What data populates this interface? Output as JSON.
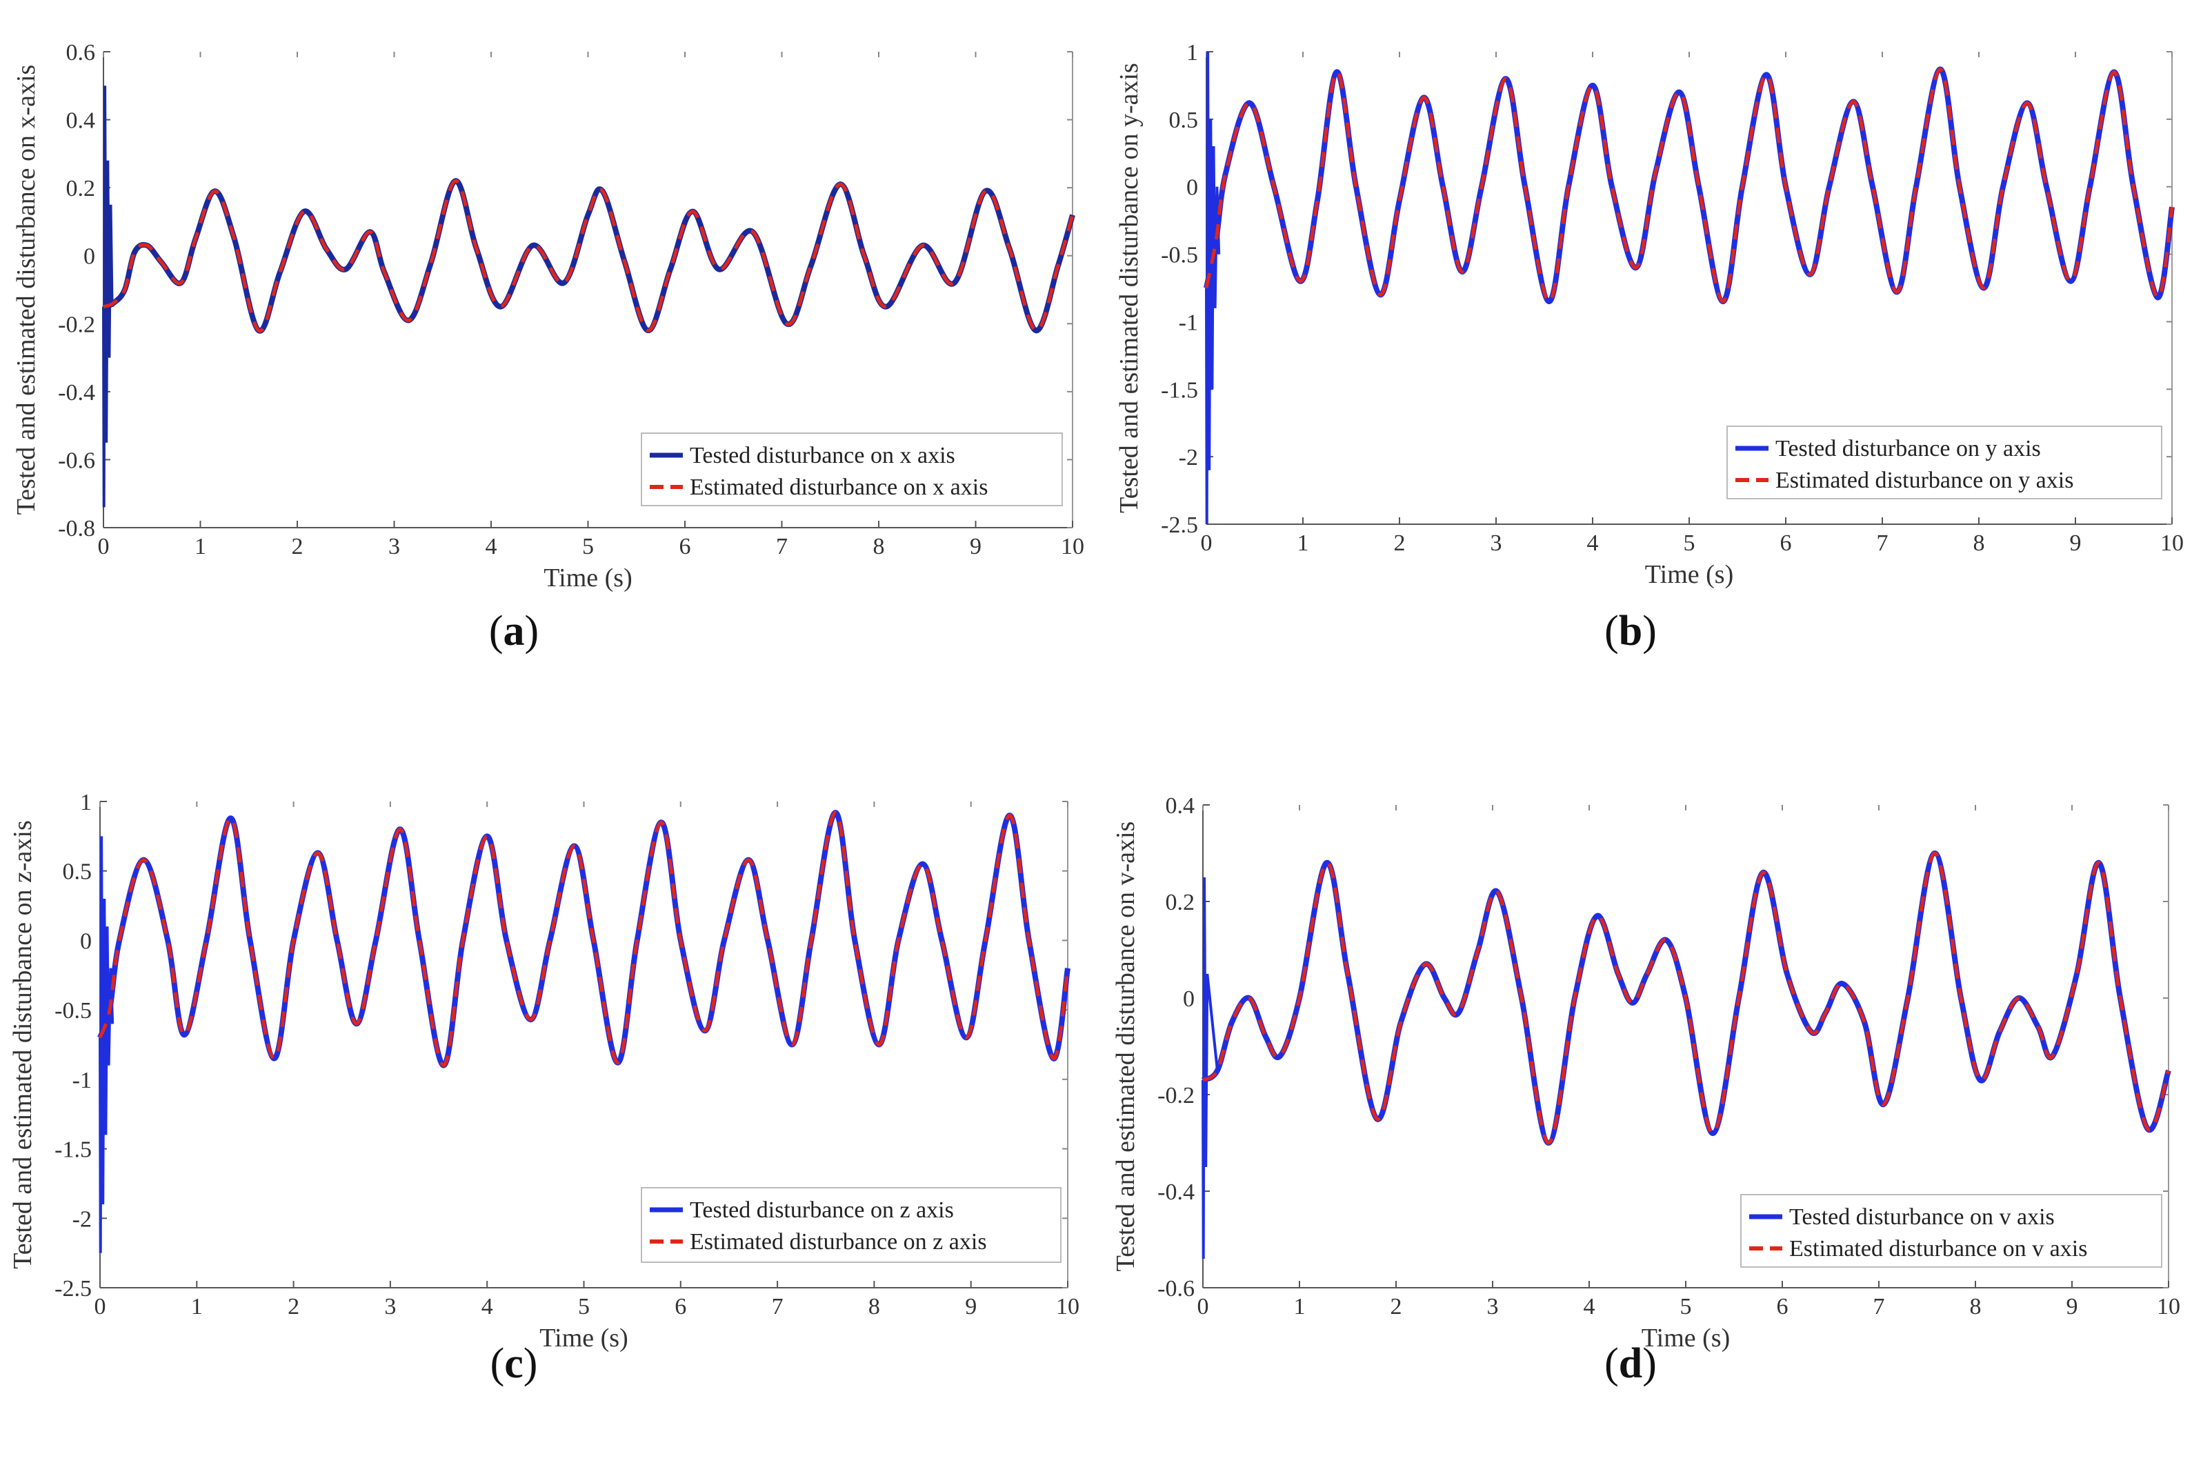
{
  "chart_data": [
    {
      "type": "line",
      "panel": "a",
      "caption": "a",
      "xlabel": "Time (s)",
      "ylabel": "Tested and estimated disturbance on x-axis",
      "xlim": [
        0,
        10
      ],
      "ylim": [
        -0.8,
        0.6
      ],
      "xticks": [
        "0",
        "1",
        "2",
        "3",
        "4",
        "5",
        "6",
        "7",
        "8",
        "9",
        "10"
      ],
      "yticks": [
        "0.6",
        "0.4",
        "0.2",
        "0",
        "-0.2",
        "-0.4",
        "-0.6",
        "-0.8"
      ],
      "legend_position": "bottom-right",
      "series": [
        {
          "name": "Tested disturbance on x axis",
          "color": "#1a2a9c",
          "style": "solid"
        },
        {
          "name": "Estimated disturbance on x axis",
          "color": "#e0261b",
          "style": "dashed"
        }
      ],
      "points": [
        [
          0,
          -0.15
        ],
        [
          0.1,
          -0.14
        ],
        [
          0.22,
          -0.1
        ],
        [
          0.32,
          0.01
        ],
        [
          0.45,
          0.03
        ],
        [
          0.6,
          -0.02
        ],
        [
          0.8,
          -0.08
        ],
        [
          0.95,
          0.05
        ],
        [
          1.15,
          0.19
        ],
        [
          1.35,
          0.05
        ],
        [
          1.6,
          -0.22
        ],
        [
          1.82,
          -0.05
        ],
        [
          2.07,
          0.13
        ],
        [
          2.3,
          0.02
        ],
        [
          2.5,
          -0.04
        ],
        [
          2.75,
          0.07
        ],
        [
          2.9,
          -0.05
        ],
        [
          3.15,
          -0.19
        ],
        [
          3.38,
          -0.02
        ],
        [
          3.63,
          0.22
        ],
        [
          3.85,
          0.02
        ],
        [
          4.1,
          -0.15
        ],
        [
          4.43,
          0.03
        ],
        [
          4.75,
          -0.08
        ],
        [
          5.0,
          0.12
        ],
        [
          5.15,
          0.19
        ],
        [
          5.38,
          -0.02
        ],
        [
          5.62,
          -0.22
        ],
        [
          5.85,
          -0.04
        ],
        [
          6.08,
          0.13
        ],
        [
          6.35,
          -0.04
        ],
        [
          6.7,
          0.07
        ],
        [
          7.05,
          -0.2
        ],
        [
          7.3,
          -0.03
        ],
        [
          7.6,
          0.21
        ],
        [
          7.85,
          0.0
        ],
        [
          8.08,
          -0.15
        ],
        [
          8.45,
          0.03
        ],
        [
          8.78,
          -0.08
        ],
        [
          9.1,
          0.19
        ],
        [
          9.35,
          0.02
        ],
        [
          9.62,
          -0.22
        ],
        [
          9.85,
          -0.03
        ],
        [
          10.0,
          0.12
        ]
      ],
      "transient": [
        [
          0.005,
          -0.74
        ],
        [
          0.015,
          0.5
        ],
        [
          0.03,
          -0.55
        ],
        [
          0.045,
          0.28
        ],
        [
          0.06,
          -0.3
        ],
        [
          0.075,
          0.15
        ],
        [
          0.09,
          -0.15
        ]
      ]
    },
    {
      "type": "line",
      "panel": "b",
      "caption": "b",
      "xlabel": "Time (s)",
      "ylabel": "Tested and estimated disturbance on y-axis",
      "xlim": [
        0,
        10
      ],
      "ylim": [
        -2.5,
        1
      ],
      "xticks": [
        "0",
        "1",
        "2",
        "3",
        "4",
        "5",
        "6",
        "7",
        "8",
        "9",
        "10"
      ],
      "yticks": [
        "1",
        "0.5",
        "0",
        "-0.5",
        "-1",
        "-1.5",
        "-2",
        "-2.5"
      ],
      "legend_position": "bottom-right",
      "series": [
        {
          "name": "Tested disturbance on y axis",
          "color": "#1f2fe0",
          "style": "solid"
        },
        {
          "name": "Estimated disturbance on y axis",
          "color": "#e0261b",
          "style": "dashed"
        }
      ],
      "points": [
        [
          0,
          -0.75
        ],
        [
          0.1,
          -0.4
        ],
        [
          0.2,
          0.1
        ],
        [
          0.45,
          0.62
        ],
        [
          0.7,
          0.0
        ],
        [
          0.97,
          -0.7
        ],
        [
          1.15,
          -0.1
        ],
        [
          1.35,
          0.85
        ],
        [
          1.55,
          0.0
        ],
        [
          1.8,
          -0.8
        ],
        [
          2.0,
          -0.1
        ],
        [
          2.25,
          0.66
        ],
        [
          2.45,
          0.0
        ],
        [
          2.65,
          -0.63
        ],
        [
          2.85,
          0.0
        ],
        [
          3.1,
          0.8
        ],
        [
          3.3,
          0.0
        ],
        [
          3.55,
          -0.85
        ],
        [
          3.75,
          0.0
        ],
        [
          4.0,
          0.75
        ],
        [
          4.2,
          0.0
        ],
        [
          4.45,
          -0.6
        ],
        [
          4.65,
          0.1
        ],
        [
          4.9,
          0.7
        ],
        [
          5.1,
          0.0
        ],
        [
          5.35,
          -0.85
        ],
        [
          5.55,
          0.0
        ],
        [
          5.8,
          0.83
        ],
        [
          6.0,
          0.0
        ],
        [
          6.25,
          -0.65
        ],
        [
          6.45,
          0.0
        ],
        [
          6.7,
          0.63
        ],
        [
          6.9,
          0.0
        ],
        [
          7.15,
          -0.78
        ],
        [
          7.35,
          0.0
        ],
        [
          7.6,
          0.87
        ],
        [
          7.8,
          0.0
        ],
        [
          8.05,
          -0.75
        ],
        [
          8.25,
          0.0
        ],
        [
          8.5,
          0.62
        ],
        [
          8.7,
          0.0
        ],
        [
          8.95,
          -0.7
        ],
        [
          9.15,
          0.0
        ],
        [
          9.4,
          0.85
        ],
        [
          9.6,
          0.0
        ],
        [
          9.85,
          -0.82
        ],
        [
          10.0,
          -0.15
        ]
      ],
      "transient": [
        [
          0.005,
          -2.5
        ],
        [
          0.015,
          1.0
        ],
        [
          0.03,
          -2.1
        ],
        [
          0.045,
          0.5
        ],
        [
          0.06,
          -1.5
        ],
        [
          0.075,
          0.3
        ],
        [
          0.09,
          -0.9
        ],
        [
          0.11,
          0.0
        ],
        [
          0.13,
          -0.5
        ]
      ]
    },
    {
      "type": "line",
      "panel": "c",
      "caption": "c",
      "xlabel": "Time (s)",
      "ylabel": "Tested and estimated disturbance on z-axis",
      "xlim": [
        0,
        10
      ],
      "ylim": [
        -2.5,
        1
      ],
      "xticks": [
        "0",
        "1",
        "2",
        "3",
        "4",
        "5",
        "6",
        "7",
        "8",
        "9",
        "10"
      ],
      "yticks": [
        "1",
        "0.5",
        "0",
        "-0.5",
        "-1",
        "-1.5",
        "-2",
        "-2.5"
      ],
      "legend_position": "bottom-right",
      "series": [
        {
          "name": "Tested disturbance on z axis",
          "color": "#1f2fe0",
          "style": "solid"
        },
        {
          "name": "Estimated disturbance on z axis",
          "color": "#e0261b",
          "style": "dashed"
        }
      ],
      "points": [
        [
          0,
          -0.7
        ],
        [
          0.1,
          -0.5
        ],
        [
          0.2,
          0.0
        ],
        [
          0.45,
          0.58
        ],
        [
          0.7,
          0.0
        ],
        [
          0.87,
          -0.68
        ],
        [
          1.1,
          0.0
        ],
        [
          1.35,
          0.88
        ],
        [
          1.55,
          0.0
        ],
        [
          1.8,
          -0.85
        ],
        [
          2.0,
          0.0
        ],
        [
          2.25,
          0.63
        ],
        [
          2.45,
          0.0
        ],
        [
          2.65,
          -0.6
        ],
        [
          2.85,
          0.0
        ],
        [
          3.1,
          0.8
        ],
        [
          3.3,
          0.0
        ],
        [
          3.55,
          -0.9
        ],
        [
          3.75,
          0.0
        ],
        [
          4.0,
          0.75
        ],
        [
          4.2,
          0.0
        ],
        [
          4.45,
          -0.57
        ],
        [
          4.65,
          0.0
        ],
        [
          4.9,
          0.68
        ],
        [
          5.1,
          0.0
        ],
        [
          5.35,
          -0.88
        ],
        [
          5.55,
          0.0
        ],
        [
          5.8,
          0.85
        ],
        [
          6.0,
          0.0
        ],
        [
          6.25,
          -0.65
        ],
        [
          6.45,
          0.0
        ],
        [
          6.7,
          0.58
        ],
        [
          6.9,
          0.0
        ],
        [
          7.15,
          -0.75
        ],
        [
          7.35,
          0.0
        ],
        [
          7.6,
          0.92
        ],
        [
          7.8,
          0.0
        ],
        [
          8.05,
          -0.75
        ],
        [
          8.25,
          0.0
        ],
        [
          8.5,
          0.55
        ],
        [
          8.7,
          0.0
        ],
        [
          8.95,
          -0.7
        ],
        [
          9.15,
          0.0
        ],
        [
          9.4,
          0.9
        ],
        [
          9.6,
          0.0
        ],
        [
          9.85,
          -0.85
        ],
        [
          10.0,
          -0.2
        ]
      ],
      "transient": [
        [
          0.005,
          -2.25
        ],
        [
          0.015,
          0.75
        ],
        [
          0.03,
          -1.9
        ],
        [
          0.045,
          0.3
        ],
        [
          0.06,
          -1.4
        ],
        [
          0.075,
          0.1
        ],
        [
          0.09,
          -0.9
        ],
        [
          0.11,
          -0.2
        ],
        [
          0.13,
          -0.6
        ]
      ]
    },
    {
      "type": "line",
      "panel": "d",
      "caption": "d",
      "xlabel": "Time (s)",
      "ylabel": "Tested and estimated disturbance on v-axis",
      "xlim": [
        0,
        10
      ],
      "ylim": [
        -0.6,
        0.4
      ],
      "xticks": [
        "0",
        "1",
        "2",
        "3",
        "4",
        "5",
        "6",
        "7",
        "8",
        "9",
        "10"
      ],
      "yticks": [
        "0.4",
        "0.2",
        "0",
        "-0.2",
        "-0.4",
        "-0.6"
      ],
      "legend_position": "bottom-right",
      "series": [
        {
          "name": "Tested disturbance on v axis",
          "color": "#1f2fe0",
          "style": "solid"
        },
        {
          "name": "Estimated disturbance on v axis",
          "color": "#e0261b",
          "style": "dashed"
        }
      ],
      "points": [
        [
          0,
          -0.17
        ],
        [
          0.15,
          -0.15
        ],
        [
          0.3,
          -0.05
        ],
        [
          0.48,
          0.0
        ],
        [
          0.65,
          -0.08
        ],
        [
          0.8,
          -0.12
        ],
        [
          1.0,
          0.0
        ],
        [
          1.28,
          0.28
        ],
        [
          1.5,
          0.05
        ],
        [
          1.8,
          -0.25
        ],
        [
          2.05,
          -0.05
        ],
        [
          2.3,
          0.07
        ],
        [
          2.5,
          0.0
        ],
        [
          2.65,
          -0.03
        ],
        [
          2.85,
          0.1
        ],
        [
          3.05,
          0.22
        ],
        [
          3.3,
          0.0
        ],
        [
          3.58,
          -0.3
        ],
        [
          3.85,
          0.0
        ],
        [
          4.08,
          0.17
        ],
        [
          4.3,
          0.05
        ],
        [
          4.45,
          -0.01
        ],
        [
          4.6,
          0.05
        ],
        [
          4.8,
          0.12
        ],
        [
          5.0,
          0.0
        ],
        [
          5.28,
          -0.28
        ],
        [
          5.55,
          0.0
        ],
        [
          5.8,
          0.26
        ],
        [
          6.05,
          0.05
        ],
        [
          6.3,
          -0.07
        ],
        [
          6.45,
          -0.03
        ],
        [
          6.62,
          0.03
        ],
        [
          6.85,
          -0.05
        ],
        [
          7.05,
          -0.22
        ],
        [
          7.3,
          0.0
        ],
        [
          7.58,
          0.3
        ],
        [
          7.85,
          0.0
        ],
        [
          8.05,
          -0.17
        ],
        [
          8.25,
          -0.07
        ],
        [
          8.45,
          0.0
        ],
        [
          8.65,
          -0.06
        ],
        [
          8.8,
          -0.12
        ],
        [
          9.05,
          0.05
        ],
        [
          9.28,
          0.28
        ],
        [
          9.5,
          0.0
        ],
        [
          9.78,
          -0.27
        ],
        [
          10.0,
          -0.15
        ]
      ],
      "transient": [
        [
          0.005,
          -0.54
        ],
        [
          0.015,
          0.25
        ],
        [
          0.03,
          -0.35
        ],
        [
          0.045,
          0.05
        ]
      ]
    }
  ]
}
